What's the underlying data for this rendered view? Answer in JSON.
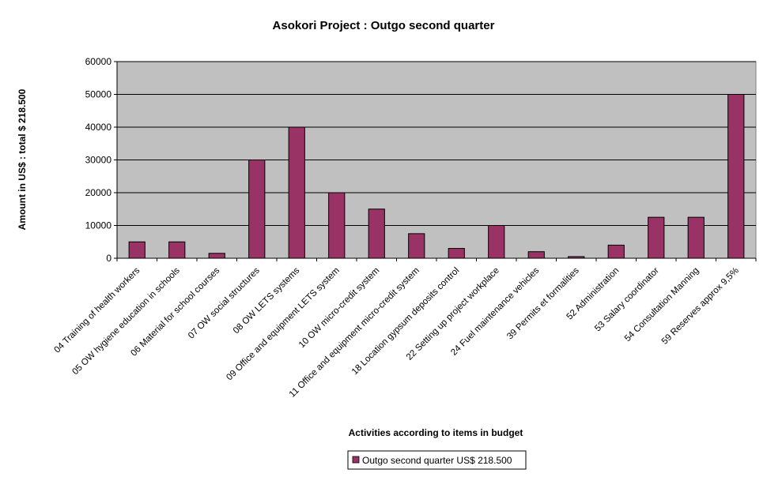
{
  "chart_data": {
    "type": "bar",
    "title": "Asokori Project : Outgo second quarter",
    "xlabel": "Activities according to items in budget",
    "ylabel": "Amount in US$ : total $ 218.500",
    "ylim": [
      0,
      60000
    ],
    "yticks": [
      "0",
      "10000",
      "20000",
      "30000",
      "40000",
      "50000",
      "60000"
    ],
    "grid": true,
    "legend_position": "bottom-center",
    "categories": [
      "04 Training of health workers",
      "05 OW hygiene education in schools",
      "06 Material for school courses",
      "07 OW social structures",
      "08 OW LETS systems",
      "09 Office and equipment LETS system",
      "10 OW micro-credit system",
      "11 Office and equipment micro-credit system",
      "18 Location gypsum deposits control",
      "22 Setting up project workplace",
      "24 Fuel maintenance vehicles",
      "39 Permits et formalities",
      "52 Administration",
      "53 Salary coordinator",
      "54 Consultation Manning",
      "59 Reserves approx 9,5%"
    ],
    "series": [
      {
        "name": "Outgo second quarter US$ 218.500",
        "values": [
          5000,
          5000,
          1500,
          30000,
          40000,
          20000,
          15000,
          7500,
          3000,
          10000,
          2000,
          500,
          4000,
          12500,
          12500,
          50000
        ]
      }
    ],
    "colors": {
      "bar": "#993366",
      "plot_background": "#c0c0c0",
      "gridline": "#000000"
    }
  }
}
